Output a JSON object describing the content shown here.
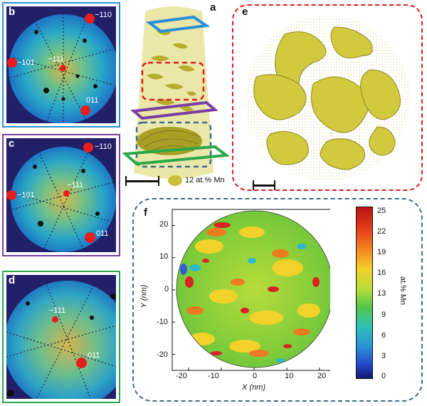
{
  "panels": {
    "a": {
      "letter": "a",
      "legend": "12 at.% Mn"
    },
    "b": {
      "letter": "b",
      "poles": [
        "−110",
        "−101",
        "−111",
        "011"
      ]
    },
    "c": {
      "letter": "c",
      "poles": [
        "−110",
        "−101",
        "−111",
        "011"
      ]
    },
    "d": {
      "letter": "d",
      "poles": [
        "−111",
        "011"
      ]
    },
    "e": {
      "letter": "e"
    },
    "f": {
      "letter": "f"
    }
  },
  "colors": {
    "b_border": "#2b8fd8",
    "c_border": "#7a3fa0",
    "d_border": "#2aa84a",
    "e_border": "#e01b1b",
    "f_border": "#3b6a93",
    "pole": "#e81d1d",
    "isosurface": "#c8c03a"
  },
  "chart_data": {
    "type": "heatmap",
    "xlabel": "X (nm)",
    "ylabel": "Y (nm)",
    "x_ticks": [
      -20,
      -10,
      0,
      10,
      20
    ],
    "y_ticks": [
      20,
      10,
      0,
      -10,
      -20
    ],
    "xlim": [
      -25,
      25
    ],
    "ylim": [
      -25,
      25
    ],
    "colorbar": {
      "label": "at.% Mn",
      "ticks": [
        25,
        22,
        19,
        16,
        13,
        9,
        6,
        3,
        0
      ],
      "range": [
        0,
        25
      ]
    }
  }
}
